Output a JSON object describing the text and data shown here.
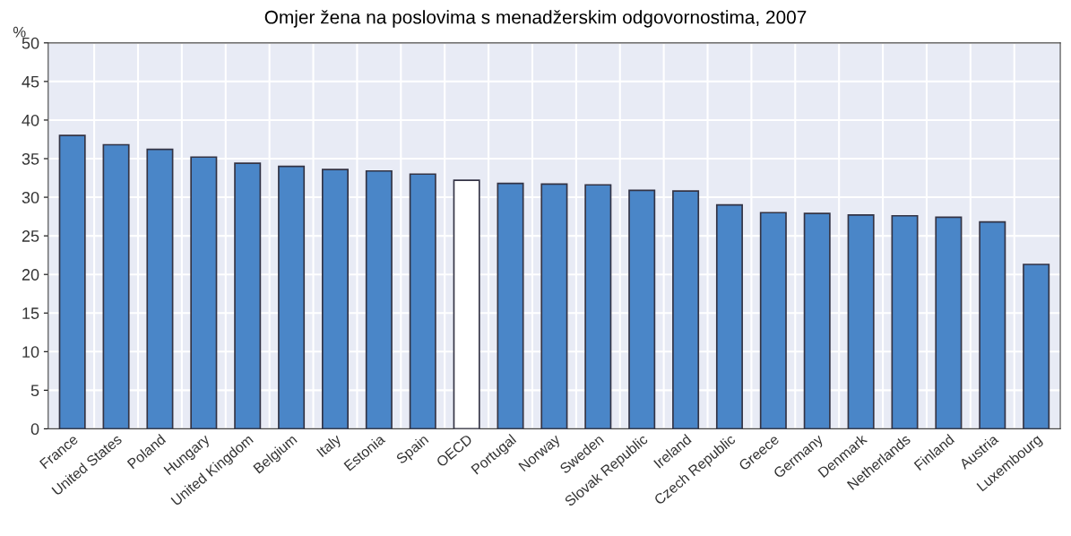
{
  "chart_data": {
    "type": "bar",
    "title": "Omjer žena na poslovima s menadžerskim odgovornostima, 2007",
    "ylabel": "%",
    "categories": [
      "France",
      "United States",
      "Poland",
      "Hungary",
      "United Kingdom",
      "Belgium",
      "Italy",
      "Estonia",
      "Spain",
      "OECD",
      "Portugal",
      "Norway",
      "Sweden",
      "Slovak Republic",
      "Ireland",
      "Czech Republic",
      "Greece",
      "Germany",
      "Denmark",
      "Netherlands",
      "Finland",
      "Austria",
      "Luxembourg"
    ],
    "values": [
      38,
      36.8,
      36.2,
      35.2,
      34.4,
      34,
      33.6,
      33.4,
      33,
      32.2,
      31.8,
      31.7,
      31.6,
      30.9,
      30.8,
      29,
      28,
      27.9,
      27.7,
      27.6,
      27.4,
      26.8,
      21.3
    ],
    "colors": [
      "#4a86c8",
      "#4a86c8",
      "#4a86c8",
      "#4a86c8",
      "#4a86c8",
      "#4a86c8",
      "#4a86c8",
      "#4a86c8",
      "#4a86c8",
      "#ffffff",
      "#4a86c8",
      "#4a86c8",
      "#4a86c8",
      "#4a86c8",
      "#4a86c8",
      "#4a86c8",
      "#4a86c8",
      "#4a86c8",
      "#4a86c8",
      "#4a86c8",
      "#4a86c8",
      "#4a86c8",
      "#4a86c8"
    ],
    "ylim": [
      0,
      50
    ],
    "yticks": [
      0,
      5,
      10,
      15,
      20,
      25,
      30,
      35,
      40,
      45,
      50
    ],
    "grid": true
  }
}
